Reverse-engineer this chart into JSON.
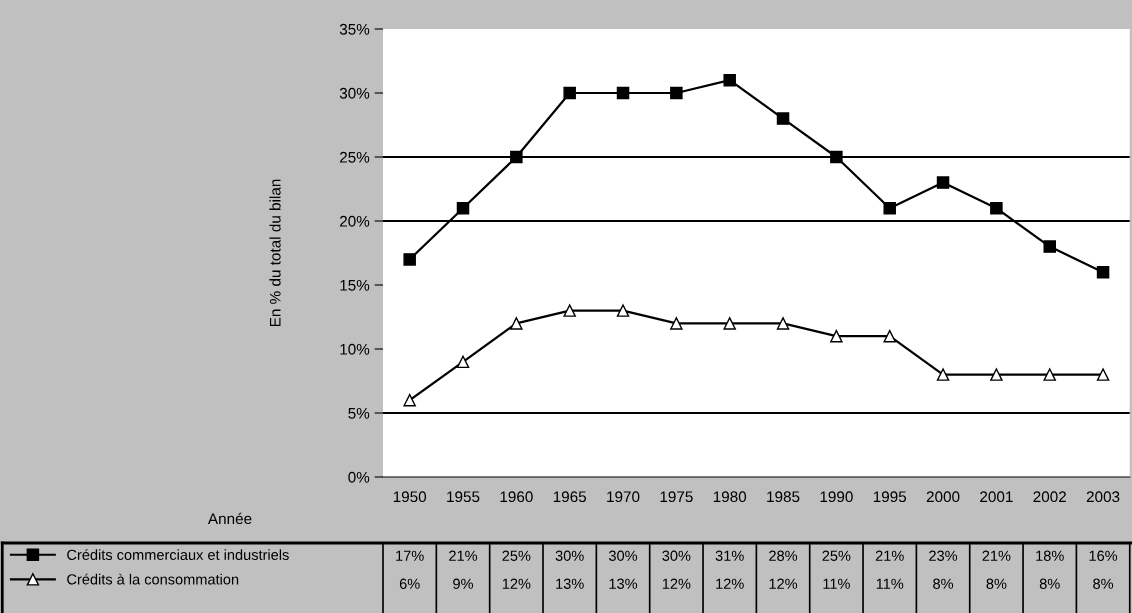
{
  "chart_data": {
    "type": "line",
    "ylabel": "En % du total du bilan",
    "annotations": [
      "Année"
    ],
    "categories": [
      "1950",
      "1955",
      "1960",
      "1965",
      "1970",
      "1975",
      "1980",
      "1985",
      "1990",
      "1995",
      "2000",
      "2001",
      "2002",
      "2003"
    ],
    "series": [
      {
        "name": "Crédits commerciaux et industriels",
        "color": "#000000",
        "marker": "square",
        "values": [
          17,
          21,
          25,
          30,
          30,
          30,
          31,
          28,
          25,
          21,
          23,
          21,
          18,
          16
        ],
        "value_labels": [
          "17%",
          "21%",
          "25%",
          "30%",
          "30%",
          "30%",
          "31%",
          "28%",
          "25%",
          "21%",
          "23%",
          "21%",
          "18%",
          "16%"
        ]
      },
      {
        "name": "Crédits à la consommation",
        "color": "#000000",
        "marker": "triangle",
        "values": [
          6,
          9,
          12,
          13,
          13,
          12,
          12,
          12,
          11,
          11,
          8,
          8,
          8,
          8
        ],
        "value_labels": [
          "6%",
          "9%",
          "12%",
          "13%",
          "13%",
          "12%",
          "12%",
          "12%",
          "11%",
          "11%",
          "8%",
          "8%",
          "8%",
          "8%"
        ]
      }
    ],
    "ylim": [
      0,
      35
    ],
    "yticks": [
      {
        "value": 0,
        "label": "0%"
      },
      {
        "value": 5,
        "label": "5%"
      },
      {
        "value": 10,
        "label": "10%"
      },
      {
        "value": 15,
        "label": "15%"
      },
      {
        "value": 20,
        "label": "20%"
      },
      {
        "value": 25,
        "label": "25%"
      },
      {
        "value": 30,
        "label": "30%"
      },
      {
        "value": 35,
        "label": "35%"
      }
    ],
    "ref_lines": [
      {
        "axis": "y",
        "value": 5,
        "color": "#000000"
      },
      {
        "axis": "y",
        "value": 20,
        "color": "#000000"
      },
      {
        "axis": "y",
        "value": 25,
        "color": "#000000"
      }
    ],
    "line_style": "solid",
    "legend": "bottom left"
  }
}
